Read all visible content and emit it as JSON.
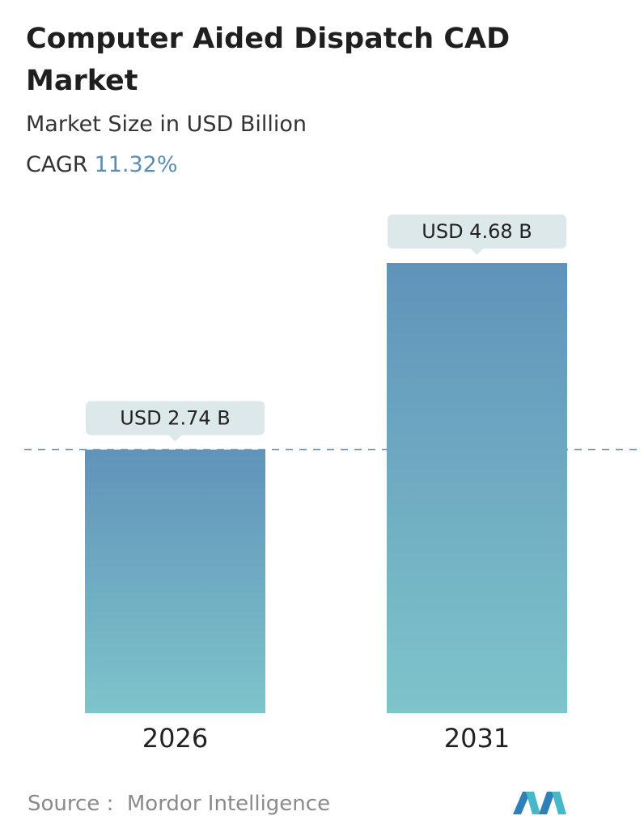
{
  "chart_data": {
    "type": "bar",
    "title": "Computer Aided Dispatch CAD Market",
    "subtitle": "Market Size in USD Billion",
    "cagr_label": "CAGR",
    "cagr_value": "11.32%",
    "categories": [
      "2026",
      "2031"
    ],
    "values": [
      2.74,
      4.68
    ],
    "value_labels": [
      "USD 2.74 B",
      "USD 4.68 B"
    ],
    "source_label": "Source :",
    "source": "Mordor Intelligence"
  }
}
